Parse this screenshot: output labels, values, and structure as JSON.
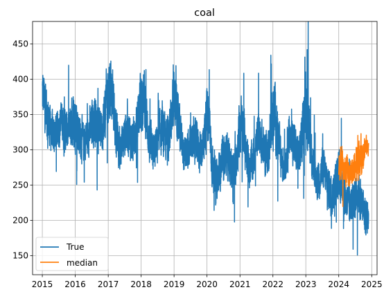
{
  "chart_data": {
    "type": "line",
    "title": "coal",
    "xlabel": "",
    "ylabel": "",
    "x_range": [
      "2014-09-15",
      "2025-03-01"
    ],
    "xlim": [
      "2014-09-15",
      "2025-03-01"
    ],
    "ylim": [
      123,
      482
    ],
    "grid": true,
    "legend_position": "lower-left",
    "x_ticks": [
      "2015",
      "2016",
      "2017",
      "2018",
      "2019",
      "2020",
      "2021",
      "2022",
      "2023",
      "2024",
      "2025"
    ],
    "y_ticks": [
      150,
      200,
      250,
      300,
      350,
      400,
      450
    ],
    "series": [
      {
        "name": "True",
        "color": "#1f77b4",
        "style": "daily, noisy",
        "x": [
          "2015-01-01",
          "2015-02-01",
          "2015-03-01",
          "2015-04-01",
          "2015-05-01",
          "2015-06-01",
          "2015-07-01",
          "2015-08-01",
          "2015-09-01",
          "2015-10-01",
          "2015-11-01",
          "2015-12-01",
          "2016-01-01",
          "2016-02-01",
          "2016-03-01",
          "2016-04-01",
          "2016-05-01",
          "2016-06-01",
          "2016-07-01",
          "2016-08-01",
          "2016-09-01",
          "2016-10-01",
          "2016-11-01",
          "2016-12-01",
          "2017-01-01",
          "2017-02-01",
          "2017-03-01",
          "2017-04-01",
          "2017-05-01",
          "2017-06-01",
          "2017-07-01",
          "2017-08-01",
          "2017-09-01",
          "2017-10-01",
          "2017-11-01",
          "2017-12-01",
          "2018-01-01",
          "2018-02-01",
          "2018-03-01",
          "2018-04-01",
          "2018-05-01",
          "2018-06-01",
          "2018-07-01",
          "2018-08-01",
          "2018-09-01",
          "2018-10-01",
          "2018-11-01",
          "2018-12-01",
          "2019-01-01",
          "2019-02-01",
          "2019-03-01",
          "2019-04-01",
          "2019-05-01",
          "2019-06-01",
          "2019-07-01",
          "2019-08-01",
          "2019-09-01",
          "2019-10-01",
          "2019-11-01",
          "2019-12-01",
          "2020-01-01",
          "2020-02-01",
          "2020-03-01",
          "2020-04-01",
          "2020-05-01",
          "2020-06-01",
          "2020-07-01",
          "2020-08-01",
          "2020-09-01",
          "2020-10-01",
          "2020-11-01",
          "2020-12-01",
          "2021-01-01",
          "2021-02-01",
          "2021-03-01",
          "2021-04-01",
          "2021-05-01",
          "2021-06-01",
          "2021-07-01",
          "2021-08-01",
          "2021-09-01",
          "2021-10-01",
          "2021-11-01",
          "2021-12-01",
          "2022-01-01",
          "2022-02-01",
          "2022-03-01",
          "2022-04-01",
          "2022-05-01",
          "2022-06-01",
          "2022-07-01",
          "2022-08-01",
          "2022-09-01",
          "2022-10-01",
          "2022-11-01",
          "2022-12-01",
          "2023-01-01",
          "2023-02-01",
          "2023-03-01",
          "2023-04-01",
          "2023-05-01",
          "2023-06-01",
          "2023-07-01",
          "2023-08-01",
          "2023-09-01",
          "2023-10-01",
          "2023-11-01",
          "2023-12-01",
          "2024-01-01",
          "2024-02-01",
          "2024-03-01",
          "2024-04-01",
          "2024-05-01",
          "2024-06-01",
          "2024-07-01",
          "2024-08-01",
          "2024-09-01",
          "2024-10-01",
          "2024-11-01"
        ],
        "mid": [
          380,
          370,
          345,
          330,
          320,
          325,
          335,
          340,
          330,
          325,
          330,
          340,
          345,
          335,
          320,
          310,
          315,
          325,
          335,
          345,
          340,
          330,
          335,
          360,
          385,
          395,
          360,
          320,
          300,
          305,
          320,
          330,
          320,
          310,
          320,
          350,
          370,
          375,
          345,
          310,
          295,
          300,
          310,
          325,
          325,
          315,
          320,
          345,
          370,
          365,
          335,
          300,
          290,
          295,
          305,
          315,
          310,
          300,
          300,
          320,
          345,
          330,
          280,
          255,
          260,
          275,
          290,
          295,
          285,
          270,
          270,
          300,
          330,
          335,
          305,
          280,
          275,
          290,
          310,
          320,
          310,
          295,
          295,
          320,
          350,
          345,
          315,
          285,
          280,
          295,
          315,
          320,
          305,
          290,
          300,
          330,
          360,
          345,
          300,
          270,
          255,
          260,
          270,
          265,
          250,
          240,
          240,
          255,
          260,
          255,
          240,
          225,
          220,
          225,
          235,
          240,
          230,
          215,
          205
        ],
        "amp": [
          55,
          50,
          45,
          40,
          38,
          40,
          42,
          42,
          40,
          40,
          42,
          50,
          55,
          50,
          45,
          40,
          40,
          42,
          45,
          48,
          45,
          42,
          45,
          55,
          65,
          60,
          50,
          42,
          40,
          40,
          42,
          45,
          42,
          40,
          42,
          52,
          60,
          58,
          48,
          40,
          38,
          38,
          40,
          42,
          42,
          40,
          42,
          50,
          58,
          55,
          45,
          40,
          38,
          38,
          40,
          42,
          40,
          40,
          40,
          48,
          58,
          52,
          45,
          40,
          38,
          38,
          40,
          42,
          40,
          40,
          40,
          48,
          58,
          55,
          45,
          40,
          38,
          40,
          42,
          45,
          42,
          40,
          40,
          50,
          62,
          58,
          48,
          40,
          38,
          40,
          42,
          45,
          42,
          40,
          42,
          52,
          65,
          58,
          48,
          42,
          40,
          40,
          42,
          42,
          40,
          40,
          40,
          42,
          45,
          42,
          40,
          38,
          38,
          40,
          42,
          42,
          42,
          40,
          40
        ]
      },
      {
        "name": "median",
        "color": "#ff7f0e",
        "style": "daily, noisy",
        "x": [
          "2024-01-01",
          "2024-02-01",
          "2024-03-01",
          "2024-04-01",
          "2024-05-01",
          "2024-06-01",
          "2024-07-01",
          "2024-08-01",
          "2024-09-01",
          "2024-10-01",
          "2024-11-01"
        ],
        "mid": [
          275,
          280,
          272,
          268,
          265,
          270,
          278,
          285,
          290,
          300,
          305
        ],
        "amp": [
          30,
          32,
          28,
          28,
          26,
          28,
          30,
          32,
          35,
          32,
          18
        ]
      }
    ]
  }
}
